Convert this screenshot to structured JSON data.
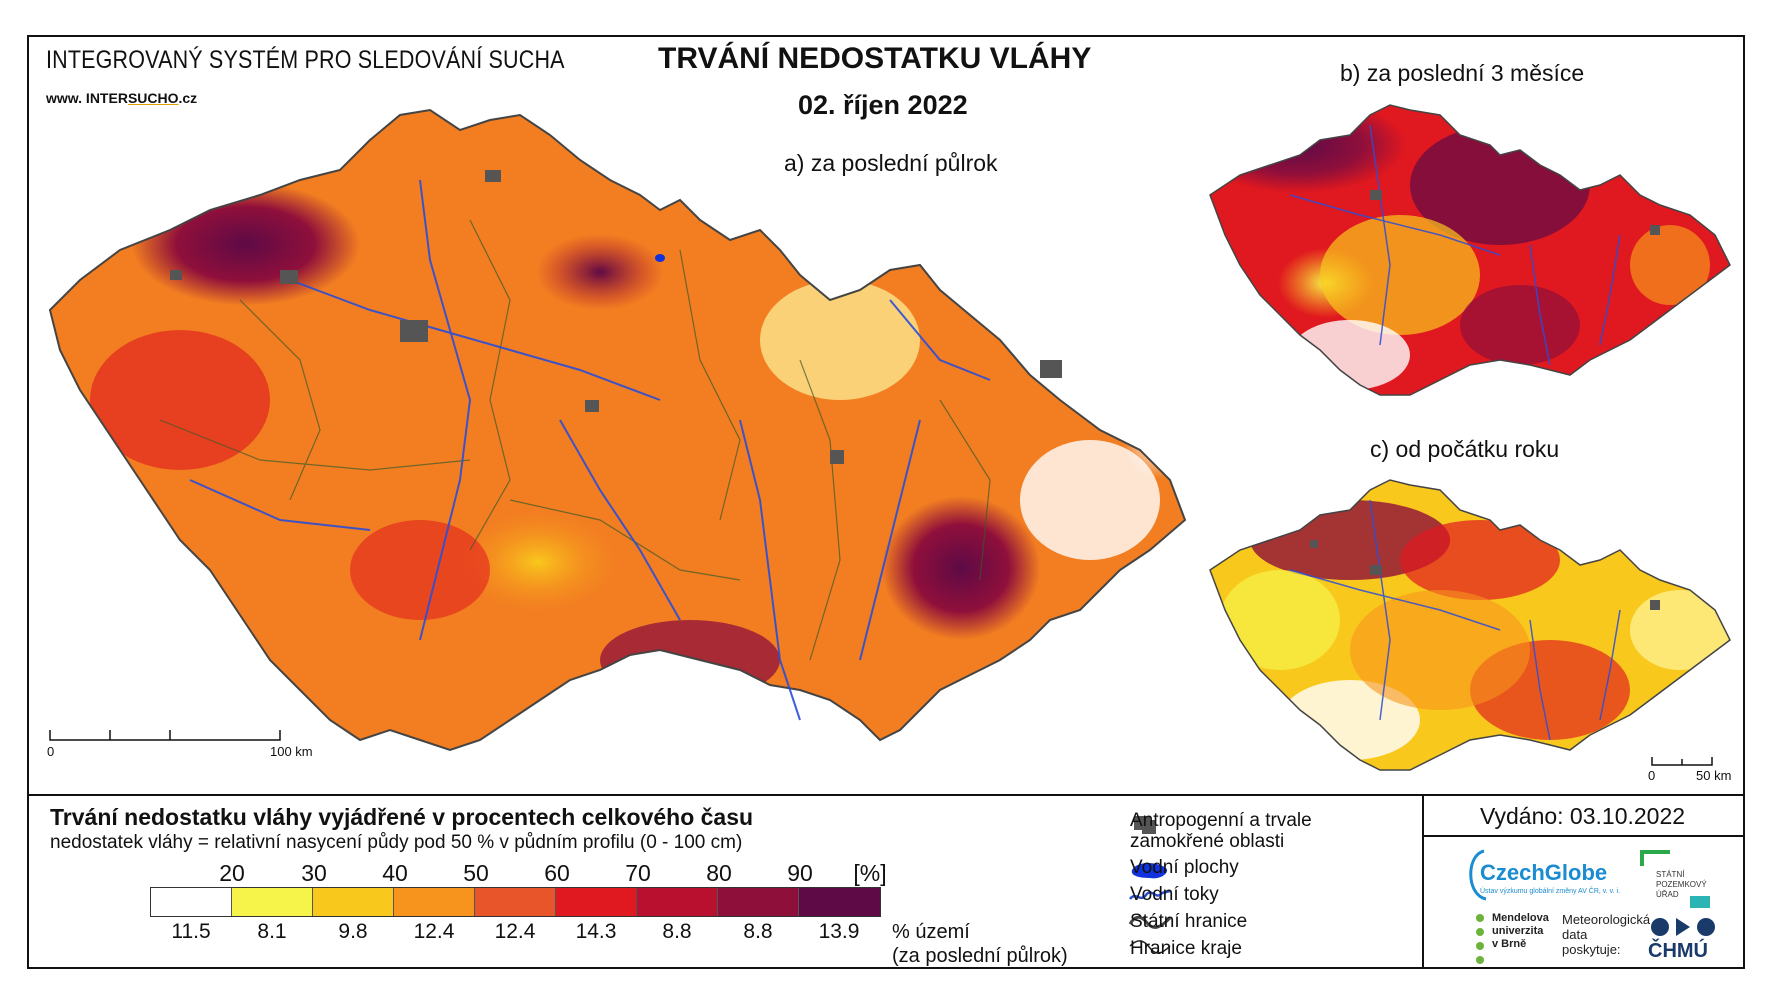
{
  "header": {
    "system_name": "INTEGROVANÝ SYSTÉM PRO SLEDOVÁNÍ SUCHA",
    "url_prefix": "www. INTER",
    "url_brand": "SUCHO",
    "url_suffix": ".cz",
    "title": "TRVÁNÍ NEDOSTATKU VLÁHY",
    "date": "02. říjen 2022"
  },
  "maps": {
    "a_label": "a) za poslední půlrok",
    "b_label": "b) za poslední 3 měsíce",
    "c_label": "c) od počátku roku",
    "scale_main_start": "0",
    "scale_main_end": "100 km",
    "scale_small_start": "0",
    "scale_small_end": "50 km"
  },
  "legend": {
    "title": "Trvání nedostatku vláhy vyjádřené v procentech celkového času",
    "subtitle": "nedostatek vláhy = relativní nasycení půdy pod 50 % v půdním profilu (0 - 100 cm)",
    "unit": "[%]",
    "ticks": [
      "20",
      "30",
      "40",
      "50",
      "60",
      "70",
      "80",
      "90"
    ],
    "colors": [
      "#ffffff",
      "#f6f34a",
      "#f9c81c",
      "#f7941d",
      "#e8552a",
      "#e0181f",
      "#b8102e",
      "#8f0f3b",
      "#5e0a46"
    ],
    "area_percent": [
      "11.5",
      "8.1",
      "9.8",
      "12.4",
      "12.4",
      "14.3",
      "8.8",
      "8.8",
      "13.9"
    ],
    "area_label_line1": "% území",
    "area_label_line2": "(za poslední půlrok)"
  },
  "key": {
    "urban": "Antropogenní a trvale",
    "urban2": "zamokřené oblasti",
    "water_bodies": "Vodní plochy",
    "rivers": "Vodní toky",
    "state_border": "Státní hranice",
    "region_border": "Hranice kraje"
  },
  "issued": "Vydáno: 03.10.2022",
  "logos": {
    "czechglobe": "CzechGlobe",
    "czechglobe_sub": "Ústav výzkumu globální změny AV ČR, v. v. i.",
    "spu": "STÁTNÍ POZEMKOVÝ ÚŘAD",
    "mendel_1": "Mendelova",
    "mendel_2": "univerzita",
    "mendel_3": "v Brně",
    "met_1": "Meteorologická",
    "met_2": "data",
    "met_3": "poskytuje:",
    "chmu": "ČHMÚ"
  }
}
